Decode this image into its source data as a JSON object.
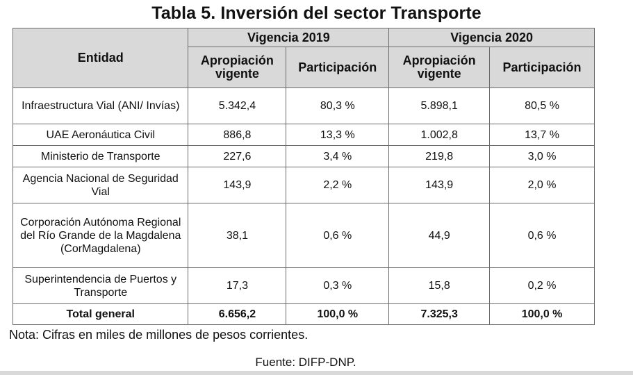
{
  "title": "Tabla 5. Inversión del sector Transporte",
  "header": {
    "entity": "Entidad",
    "group_2019": "Vigencia 2019",
    "group_2020": "Vigencia 2020",
    "apropiacion": "Apropiación vigente",
    "participacion": "Participación"
  },
  "rows": [
    {
      "entity": "Infraestructura Vial (ANI/ Invías)",
      "ap2019": "5.342,4",
      "pa2019": "80,3 %",
      "ap2020": "5.898,1",
      "pa2020": "80,5 %"
    },
    {
      "entity": "UAE Aeronáutica Civil",
      "ap2019": "886,8",
      "pa2019": "13,3 %",
      "ap2020": "1.002,8",
      "pa2020": "13,7 %"
    },
    {
      "entity": "Ministerio de Transporte",
      "ap2019": "227,6",
      "pa2019": "3,4 %",
      "ap2020": "219,8",
      "pa2020": "3,0 %"
    },
    {
      "entity": "Agencia Nacional de Seguridad Vial",
      "ap2019": "143,9",
      "pa2019": "2,2 %",
      "ap2020": "143,9",
      "pa2020": "2,0 %"
    },
    {
      "entity": "Corporación Autónoma Regional del Río Grande de la Magdalena (CorMagdalena)",
      "ap2019": "38,1",
      "pa2019": "0,6 %",
      "ap2020": "44,9",
      "pa2020": "0,6 %"
    },
    {
      "entity": "Superintendencia de Puertos y Transporte",
      "ap2019": "17,3",
      "pa2019": "0,3 %",
      "ap2020": "15,8",
      "pa2020": "0,2 %"
    }
  ],
  "total": {
    "entity": "Total general",
    "ap2019": "6.656,2",
    "pa2019": "100,0 %",
    "ap2020": "7.325,3",
    "pa2020": "100,0 %"
  },
  "note": "Nota: Cifras en miles de millones de pesos corrientes.",
  "source": "Fuente: DIFP-DNP.",
  "colors": {
    "header_bg": "#d9d9d9",
    "border": "#6a6a6a"
  }
}
